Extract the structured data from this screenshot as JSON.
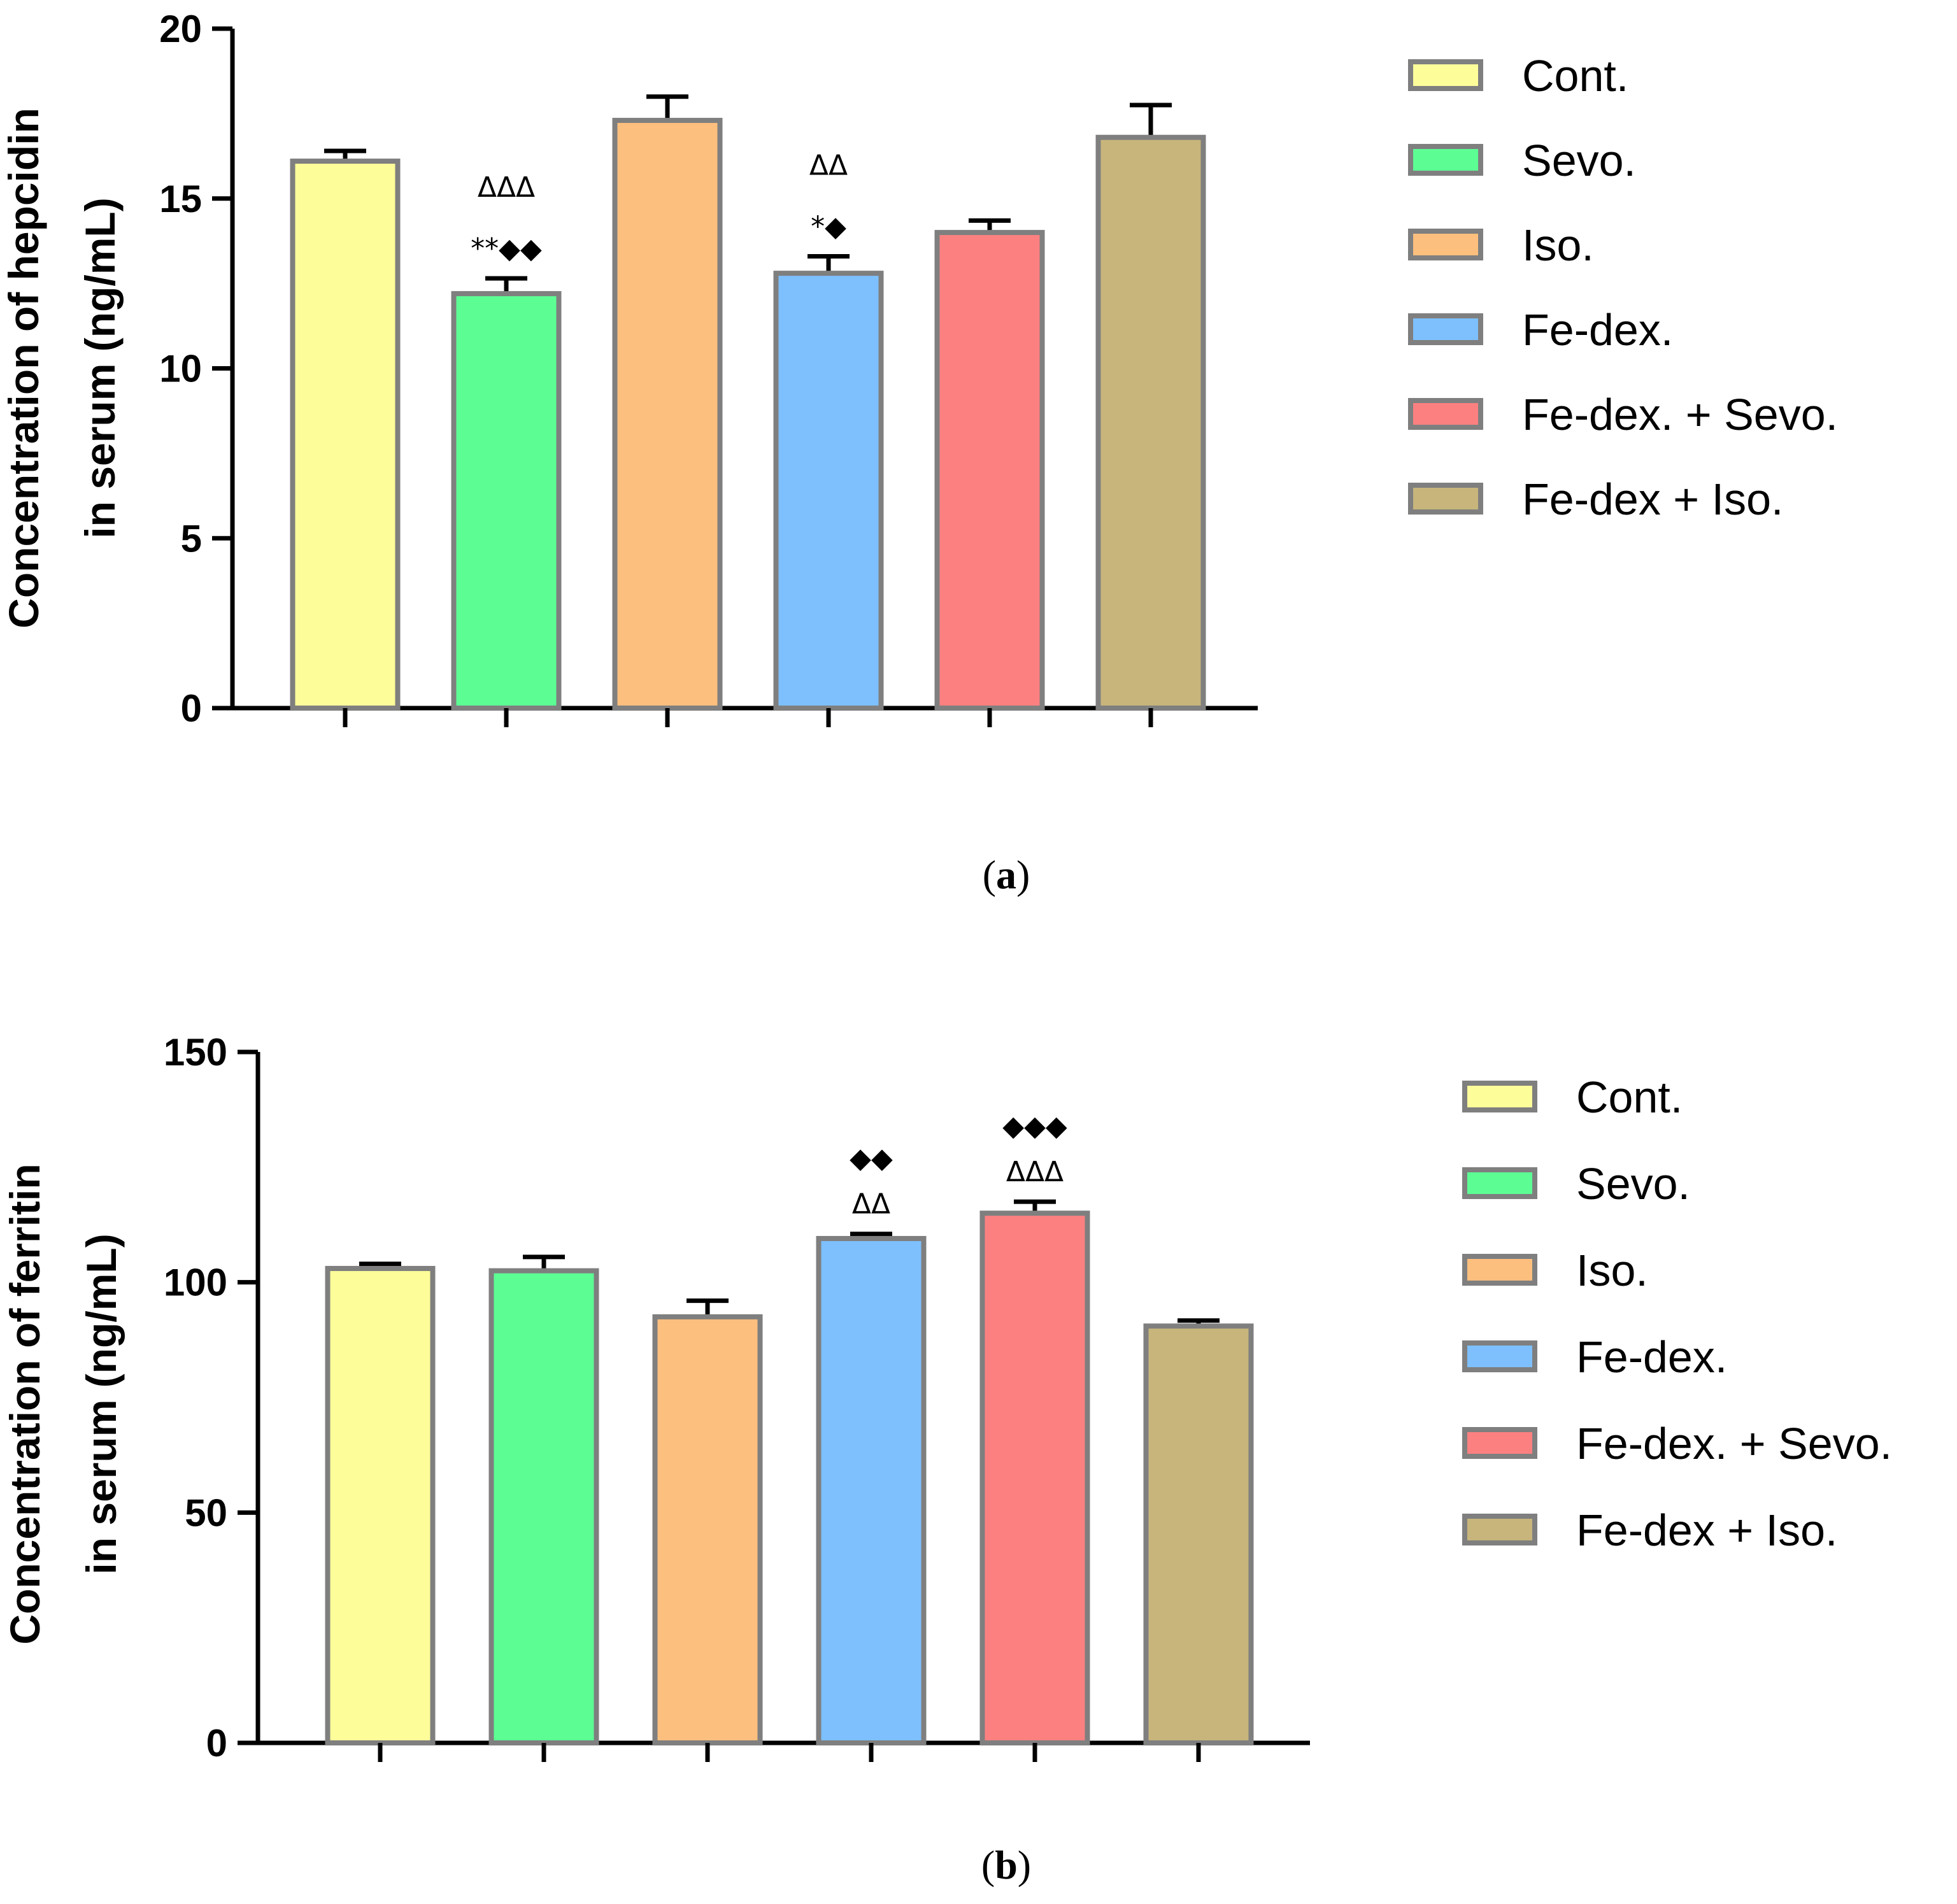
{
  "chart_data": [
    {
      "type": "bar",
      "panel_label": "a",
      "xlabel": "",
      "ylabel_lines": [
        "Concentration of hepcidin",
        "in serum (ng/mL)"
      ],
      "ylim": [
        0,
        20
      ],
      "yticks": [
        0,
        5,
        10,
        15,
        20
      ],
      "categories": [
        "Cont.",
        "Sevo.",
        "Iso.",
        "Fe-dex.",
        "Fe-dex. + Sevo.",
        "Fe-dex + Iso."
      ],
      "values": [
        16.1,
        12.2,
        17.3,
        12.8,
        14.0,
        16.8
      ],
      "errors": [
        0.3,
        0.45,
        0.7,
        0.5,
        0.35,
        0.95
      ],
      "colors": [
        "#fdfd9a",
        "#5cfe94",
        "#fdbf7e",
        "#7dc0fd",
        "#fd8080",
        "#c7b57b"
      ],
      "legend": [
        "Cont.",
        "Sevo.",
        "Iso.",
        "Fe-dex.",
        "Fe-dex. + Sevo.",
        "Fe-dex + Iso."
      ],
      "legend_position": "top-right",
      "annotations": [
        {
          "index": 1,
          "lines": [
            "ΔΔΔ",
            "**◆◆"
          ]
        },
        {
          "index": 3,
          "lines": [
            "ΔΔ",
            "*◆"
          ]
        }
      ]
    },
    {
      "type": "bar",
      "panel_label": "b",
      "xlabel": "",
      "ylabel_lines": [
        "Concentration of  ferritin",
        "in serum (ng/mL)"
      ],
      "ylim": [
        0,
        150
      ],
      "yticks": [
        0,
        50,
        100,
        150
      ],
      "categories": [
        "Cont.",
        "Sevo.",
        "Iso.",
        "Fe-dex.",
        "Fe-dex. + Sevo.",
        "Fe-dex + Iso."
      ],
      "values": [
        103,
        102.5,
        92.5,
        109.5,
        115,
        90.5
      ],
      "errors": [
        1.0,
        3.0,
        3.5,
        1.0,
        2.5,
        1.2
      ],
      "colors": [
        "#fdfd9a",
        "#5cfe94",
        "#fdbf7e",
        "#7dc0fd",
        "#fd8080",
        "#c7b57b"
      ],
      "legend": [
        "Cont.",
        "Sevo.",
        "Iso.",
        "Fe-dex.",
        "Fe-dex. + Sevo.",
        "Fe-dex + Iso."
      ],
      "legend_position": "right",
      "annotations": [
        {
          "index": 3,
          "lines": [
            "◆◆",
            "ΔΔ"
          ]
        },
        {
          "index": 4,
          "lines": [
            "◆◆◆",
            "ΔΔΔ"
          ]
        }
      ]
    }
  ]
}
